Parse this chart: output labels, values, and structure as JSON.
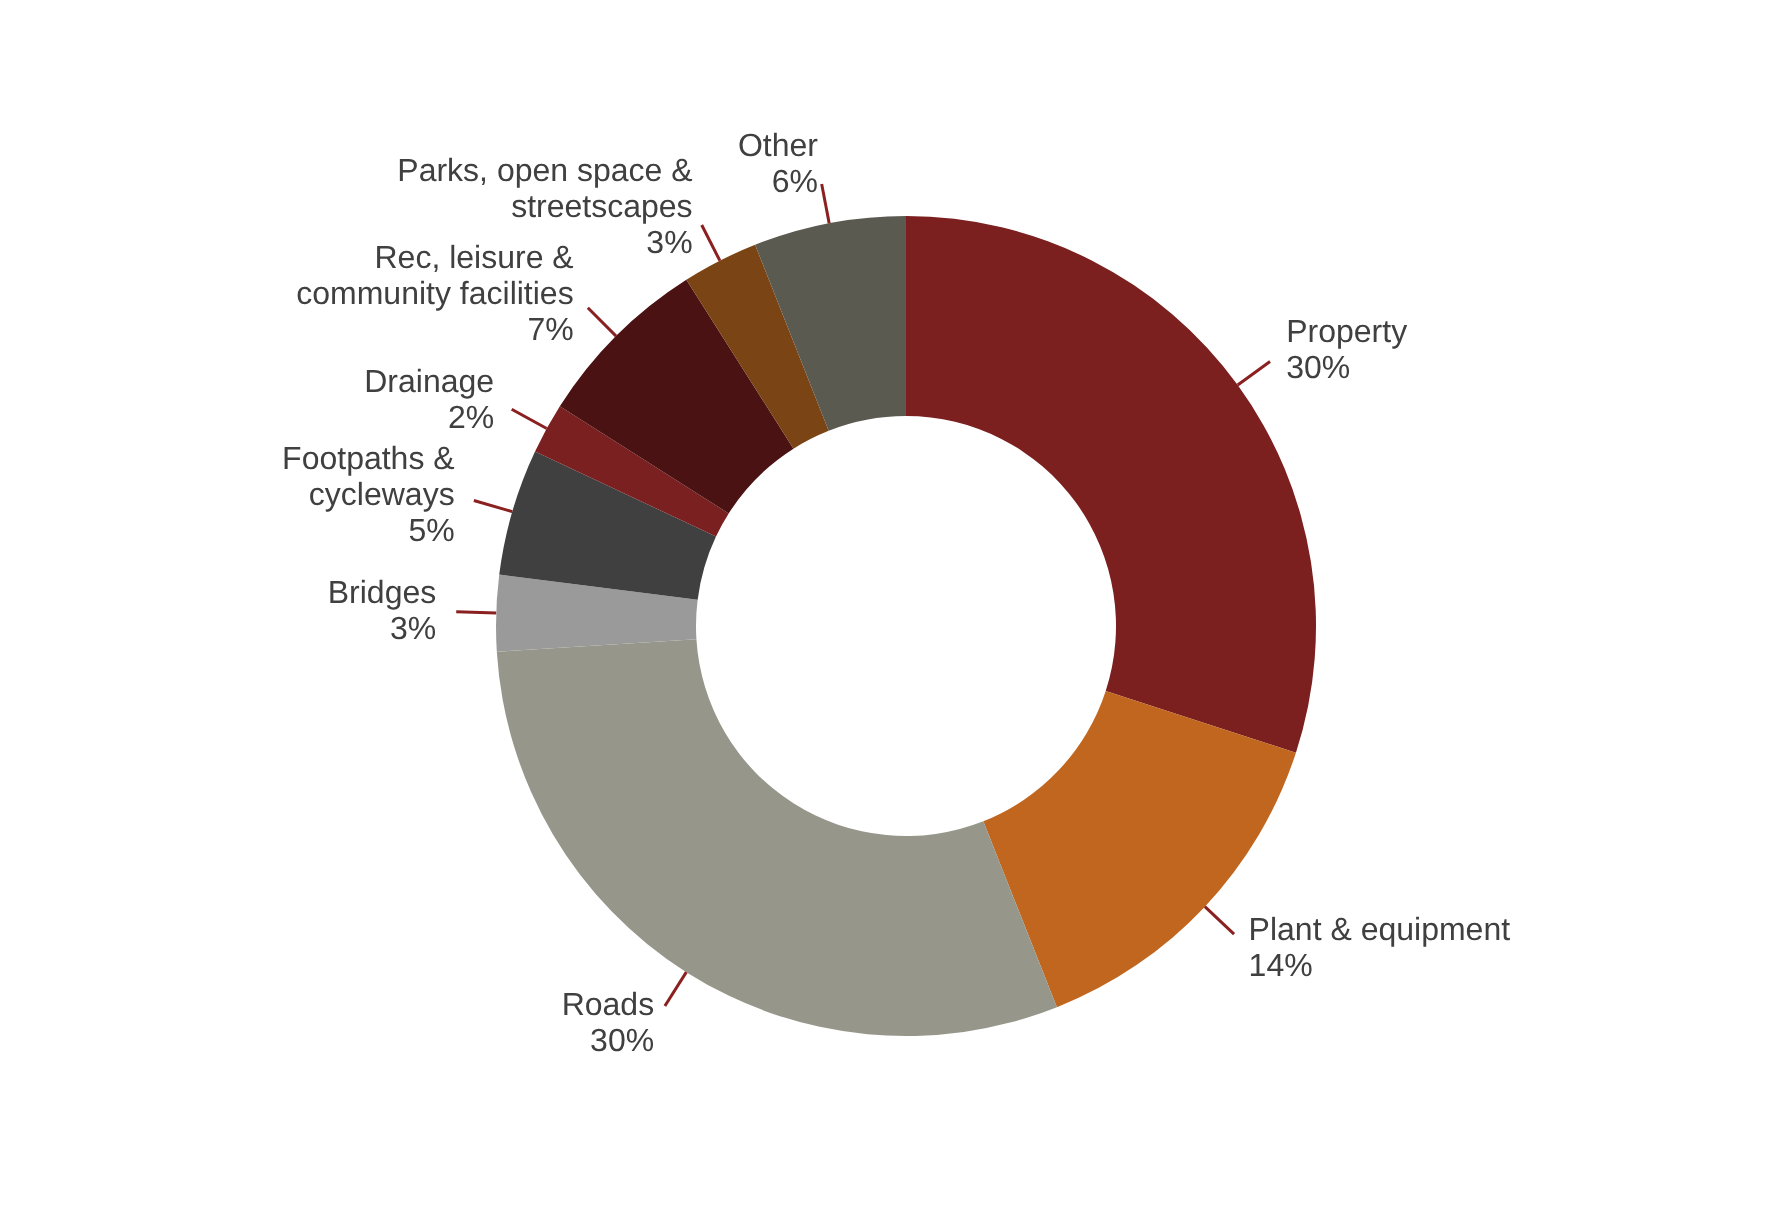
{
  "chart_data": {
    "type": "donut",
    "categories": [
      "Property",
      "Plant & equipment",
      "Roads",
      "Bridges",
      "Footpaths & cycleways",
      "Drainage",
      "Rec, leisure & community facilities",
      "Parks, open space & streetscapes",
      "Other"
    ],
    "values": [
      30,
      14,
      30,
      3,
      5,
      2,
      7,
      3,
      6
    ],
    "value_labels": [
      "30%",
      "14%",
      "30%",
      "3%",
      "5%",
      "2%",
      "7%",
      "3%",
      "6%"
    ],
    "colors": [
      "#7b1f1f",
      "#c0661f",
      "#96978a",
      "#9a9a9a",
      "#404040",
      "#7b2020",
      "#4a1212",
      "#7a4414",
      "#5a5a50"
    ],
    "legend": false
  }
}
